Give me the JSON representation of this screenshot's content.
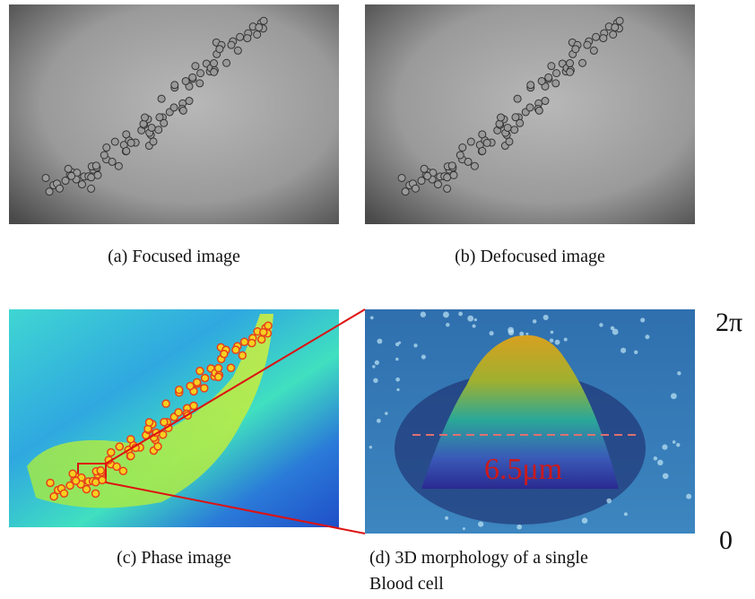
{
  "panels": [
    {
      "caption": "(a) Focused image"
    },
    {
      "caption": "(b) Defocused image"
    },
    {
      "caption": "(c) Phase image"
    },
    {
      "caption_lines": [
        "(d) 3D morphology of a single",
        "Blood cell"
      ],
      "annotation": "6.5μm"
    }
  ],
  "colorbar": {
    "max_label": "2π",
    "min_label": "0"
  }
}
